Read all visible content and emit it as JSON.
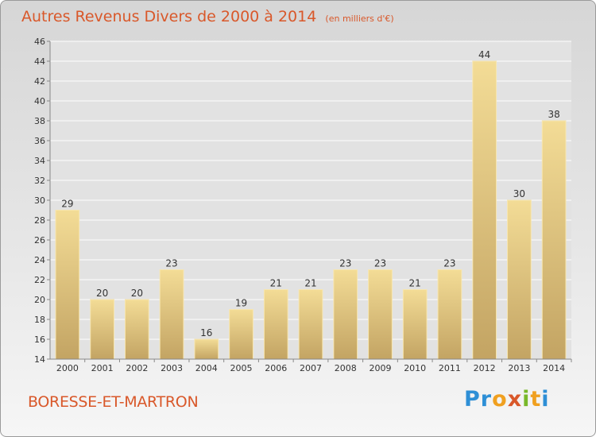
{
  "header": {
    "title": "Autres Revenus Divers de 2000 à 2014",
    "subtitle": "(en milliers d'€)"
  },
  "footer": {
    "place": "BORESSE-ET-MARTRON",
    "brand": "Proxiti"
  },
  "chart_data": {
    "type": "bar",
    "title": "Autres Revenus Divers de 2000 à 2014",
    "subtitle": "(en milliers d'€)",
    "xlabel": "",
    "ylabel": "",
    "categories": [
      "2000",
      "2001",
      "2002",
      "2003",
      "2004",
      "2005",
      "2006",
      "2007",
      "2008",
      "2009",
      "2010",
      "2011",
      "2012",
      "2013",
      "2014"
    ],
    "values": [
      29,
      20,
      20,
      23,
      16,
      19,
      21,
      21,
      23,
      23,
      21,
      23,
      44,
      30,
      38
    ],
    "ylim": [
      14,
      46
    ],
    "yticks": [
      14,
      16,
      18,
      20,
      22,
      24,
      26,
      28,
      30,
      32,
      34,
      36,
      38,
      40,
      42,
      44,
      46
    ],
    "grid": true,
    "legend": "none",
    "colors": {
      "bar_light": "#f3dc96",
      "bar_dark": "#c3a463",
      "grid": "#ffffff",
      "axis": "#888888",
      "text": "#333333"
    }
  }
}
